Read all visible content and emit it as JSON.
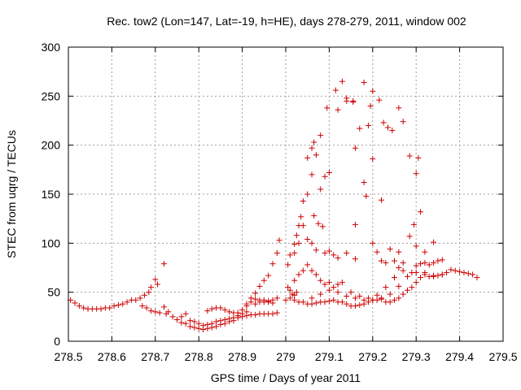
{
  "chart_data": {
    "type": "scatter",
    "title": "Rec. tow2 (Lon=147, Lat=-19, h=HE), days 278-279, 2011, window 002",
    "xlabel": "GPS time / Days of year 2011",
    "ylabel": "STEC from uqrg / TECUs",
    "xlim": [
      278.5,
      279.5
    ],
    "ylim": [
      0,
      300
    ],
    "xticks": [
      "278.5",
      "278.6",
      "278.7",
      "278.8",
      "278.9",
      "279",
      "279.1",
      "279.2",
      "279.3",
      "279.4",
      "279.5"
    ],
    "yticks": [
      "0",
      "50",
      "100",
      "150",
      "200",
      "250",
      "300"
    ],
    "grid": true,
    "marker": "+",
    "color": "#cc0000",
    "points": [
      [
        278.505,
        42
      ],
      [
        278.515,
        39
      ],
      [
        278.525,
        36
      ],
      [
        278.535,
        34
      ],
      [
        278.545,
        33
      ],
      [
        278.555,
        33
      ],
      [
        278.565,
        33
      ],
      [
        278.575,
        33
      ],
      [
        278.585,
        34
      ],
      [
        278.595,
        34
      ],
      [
        278.605,
        36
      ],
      [
        278.615,
        37
      ],
      [
        278.625,
        38
      ],
      [
        278.635,
        40
      ],
      [
        278.645,
        42
      ],
      [
        278.655,
        42
      ],
      [
        278.665,
        44
      ],
      [
        278.675,
        47
      ],
      [
        278.685,
        50
      ],
      [
        278.69,
        55
      ],
      [
        278.7,
        63
      ],
      [
        278.705,
        58
      ],
      [
        278.72,
        79
      ],
      [
        278.67,
        36
      ],
      [
        278.68,
        34
      ],
      [
        278.69,
        31
      ],
      [
        278.7,
        30
      ],
      [
        278.71,
        29
      ],
      [
        278.72,
        35
      ],
      [
        278.725,
        28
      ],
      [
        278.73,
        30
      ],
      [
        278.74,
        25
      ],
      [
        278.75,
        22
      ],
      [
        278.76,
        19
      ],
      [
        278.77,
        18
      ],
      [
        278.78,
        15
      ],
      [
        278.79,
        14
      ],
      [
        278.8,
        13
      ],
      [
        278.81,
        12
      ],
      [
        278.82,
        13
      ],
      [
        278.83,
        14
      ],
      [
        278.84,
        15
      ],
      [
        278.85,
        17
      ],
      [
        278.86,
        18
      ],
      [
        278.87,
        20
      ],
      [
        278.88,
        21
      ],
      [
        278.89,
        24
      ],
      [
        278.9,
        25
      ],
      [
        278.91,
        26
      ],
      [
        278.92,
        27
      ],
      [
        278.93,
        27
      ],
      [
        278.94,
        28
      ],
      [
        278.95,
        28
      ],
      [
        278.96,
        28
      ],
      [
        278.97,
        28
      ],
      [
        278.98,
        29
      ],
      [
        278.76,
        25
      ],
      [
        278.77,
        28
      ],
      [
        278.78,
        21
      ],
      [
        278.79,
        20
      ],
      [
        278.8,
        18
      ],
      [
        278.81,
        16
      ],
      [
        278.82,
        17
      ],
      [
        278.83,
        18
      ],
      [
        278.84,
        20
      ],
      [
        278.85,
        21
      ],
      [
        278.86,
        22
      ],
      [
        278.87,
        23
      ],
      [
        278.88,
        24
      ],
      [
        278.89,
        26
      ],
      [
        278.9,
        28
      ],
      [
        278.91,
        30
      ],
      [
        278.82,
        31
      ],
      [
        278.83,
        33
      ],
      [
        278.84,
        34
      ],
      [
        278.85,
        34
      ],
      [
        278.86,
        32
      ],
      [
        278.87,
        30
      ],
      [
        278.88,
        29
      ],
      [
        278.89,
        29
      ],
      [
        278.9,
        32
      ],
      [
        278.91,
        36
      ],
      [
        278.92,
        40
      ],
      [
        278.93,
        43
      ],
      [
        278.94,
        42
      ],
      [
        278.95,
        42
      ],
      [
        278.96,
        41
      ],
      [
        278.97,
        42
      ],
      [
        278.98,
        44
      ],
      [
        278.91,
        38
      ],
      [
        278.92,
        44
      ],
      [
        278.93,
        49
      ],
      [
        278.94,
        56
      ],
      [
        278.95,
        62
      ],
      [
        278.96,
        67
      ],
      [
        278.97,
        79
      ],
      [
        278.98,
        90
      ],
      [
        278.985,
        103
      ],
      [
        278.93,
        38
      ],
      [
        278.94,
        40
      ],
      [
        278.95,
        40
      ],
      [
        278.96,
        40
      ],
      [
        278.97,
        39
      ],
      [
        279.005,
        55
      ],
      [
        279.01,
        52
      ],
      [
        279.015,
        48
      ],
      [
        279.02,
        47
      ],
      [
        279.025,
        50
      ],
      [
        279.005,
        78
      ],
      [
        279.01,
        88
      ],
      [
        279.02,
        99
      ],
      [
        279.025,
        108
      ],
      [
        279.03,
        118
      ],
      [
        279.035,
        127
      ],
      [
        279.04,
        143
      ],
      [
        279.05,
        150
      ],
      [
        279.06,
        170
      ],
      [
        279.07,
        190
      ],
      [
        279.08,
        210
      ],
      [
        279.095,
        238
      ],
      [
        279.115,
        256
      ],
      [
        279.13,
        265
      ],
      [
        279.14,
        248
      ],
      [
        279.155,
        245
      ],
      [
        279.05,
        187
      ],
      [
        279.06,
        197
      ],
      [
        279.065,
        203
      ],
      [
        279.08,
        155
      ],
      [
        279.09,
        168
      ],
      [
        279.1,
        172
      ],
      [
        279.12,
        236
      ],
      [
        279.14,
        245
      ],
      [
        279.155,
        244
      ],
      [
        279.16,
        197
      ],
      [
        279.17,
        217
      ],
      [
        279.18,
        264
      ],
      [
        279.19,
        220
      ],
      [
        279.195,
        240
      ],
      [
        279.2,
        255
      ],
      [
        279.215,
        246
      ],
      [
        279.2,
        186
      ],
      [
        279.225,
        223
      ],
      [
        279.235,
        218
      ],
      [
        279.245,
        215
      ],
      [
        279.26,
        238
      ],
      [
        279.27,
        224
      ],
      [
        279.285,
        189
      ],
      [
        279.3,
        171
      ],
      [
        279.305,
        187
      ],
      [
        279.31,
        132
      ],
      [
        279.18,
        162
      ],
      [
        279.185,
        148
      ],
      [
        279.16,
        119
      ],
      [
        279.22,
        144
      ],
      [
        279.295,
        119
      ],
      [
        279.065,
        128
      ],
      [
        279.075,
        120
      ],
      [
        279.085,
        117
      ],
      [
        279.02,
        90
      ],
      [
        279.03,
        100
      ],
      [
        279.04,
        118
      ],
      [
        279.05,
        104
      ],
      [
        279.06,
        100
      ],
      [
        279.07,
        93
      ],
      [
        279.09,
        90
      ],
      [
        279.1,
        92
      ],
      [
        279.11,
        88
      ],
      [
        279.12,
        85
      ],
      [
        279.14,
        90
      ],
      [
        279.16,
        84
      ],
      [
        279.2,
        100
      ],
      [
        279.21,
        91
      ],
      [
        279.22,
        82
      ],
      [
        279.23,
        80
      ],
      [
        279.24,
        94
      ],
      [
        279.25,
        82
      ],
      [
        279.26,
        91
      ],
      [
        279.27,
        80
      ],
      [
        279.285,
        107
      ],
      [
        279.3,
        97
      ],
      [
        279.32,
        91
      ],
      [
        279.34,
        101
      ],
      [
        279.02,
        62
      ],
      [
        279.03,
        68
      ],
      [
        279.04,
        72
      ],
      [
        279.05,
        78
      ],
      [
        279.06,
        72
      ],
      [
        279.07,
        68
      ],
      [
        279.08,
        62
      ],
      [
        279.09,
        58
      ],
      [
        279.1,
        60
      ],
      [
        279.11,
        55
      ],
      [
        279.12,
        58
      ],
      [
        279.13,
        60
      ],
      [
        279.15,
        50
      ],
      [
        279.17,
        46
      ],
      [
        279.19,
        44
      ],
      [
        279.21,
        47
      ],
      [
        279.23,
        55
      ],
      [
        279.25,
        65
      ],
      [
        279.26,
        75
      ],
      [
        279.27,
        72
      ],
      [
        279.29,
        70
      ],
      [
        279.3,
        77
      ],
      [
        279.31,
        79
      ],
      [
        279.32,
        80
      ],
      [
        279.33,
        78
      ],
      [
        279.34,
        80
      ],
      [
        279.35,
        82
      ],
      [
        279.36,
        83
      ],
      [
        279.0,
        42
      ],
      [
        279.01,
        44
      ],
      [
        279.02,
        42
      ],
      [
        279.03,
        40
      ],
      [
        279.04,
        40
      ],
      [
        279.05,
        38
      ],
      [
        279.06,
        38
      ],
      [
        279.07,
        39
      ],
      [
        279.08,
        40
      ],
      [
        279.09,
        40
      ],
      [
        279.1,
        41
      ],
      [
        279.11,
        42
      ],
      [
        279.12,
        40
      ],
      [
        279.13,
        40
      ],
      [
        279.14,
        38
      ],
      [
        279.15,
        36
      ],
      [
        279.16,
        36
      ],
      [
        279.17,
        37
      ],
      [
        279.18,
        38
      ],
      [
        279.19,
        40
      ],
      [
        279.2,
        42
      ],
      [
        279.21,
        42
      ],
      [
        279.22,
        43
      ],
      [
        279.23,
        40
      ],
      [
        279.24,
        40
      ],
      [
        279.25,
        42
      ],
      [
        279.26,
        44
      ],
      [
        279.27,
        48
      ],
      [
        279.28,
        52
      ],
      [
        279.29,
        55
      ],
      [
        279.3,
        60
      ],
      [
        279.31,
        65
      ],
      [
        279.32,
        68
      ],
      [
        279.33,
        66
      ],
      [
        279.34,
        67
      ],
      [
        279.35,
        67
      ],
      [
        279.36,
        68
      ],
      [
        279.37,
        70
      ],
      [
        279.38,
        73
      ],
      [
        279.39,
        72
      ],
      [
        279.4,
        71
      ],
      [
        279.41,
        70
      ],
      [
        279.42,
        69
      ],
      [
        279.43,
        68
      ],
      [
        279.44,
        65
      ],
      [
        279.06,
        44
      ],
      [
        279.08,
        48
      ],
      [
        279.1,
        52
      ],
      [
        279.12,
        50
      ],
      [
        279.14,
        46
      ],
      [
        279.16,
        44
      ],
      [
        279.18,
        42
      ],
      [
        279.2,
        42
      ],
      [
        279.22,
        44
      ],
      [
        279.24,
        48
      ],
      [
        279.26,
        56
      ],
      [
        279.28,
        66
      ],
      [
        279.3,
        70
      ],
      [
        279.32,
        70
      ],
      [
        279.34,
        66
      ],
      [
        279.36,
        68
      ]
    ]
  }
}
